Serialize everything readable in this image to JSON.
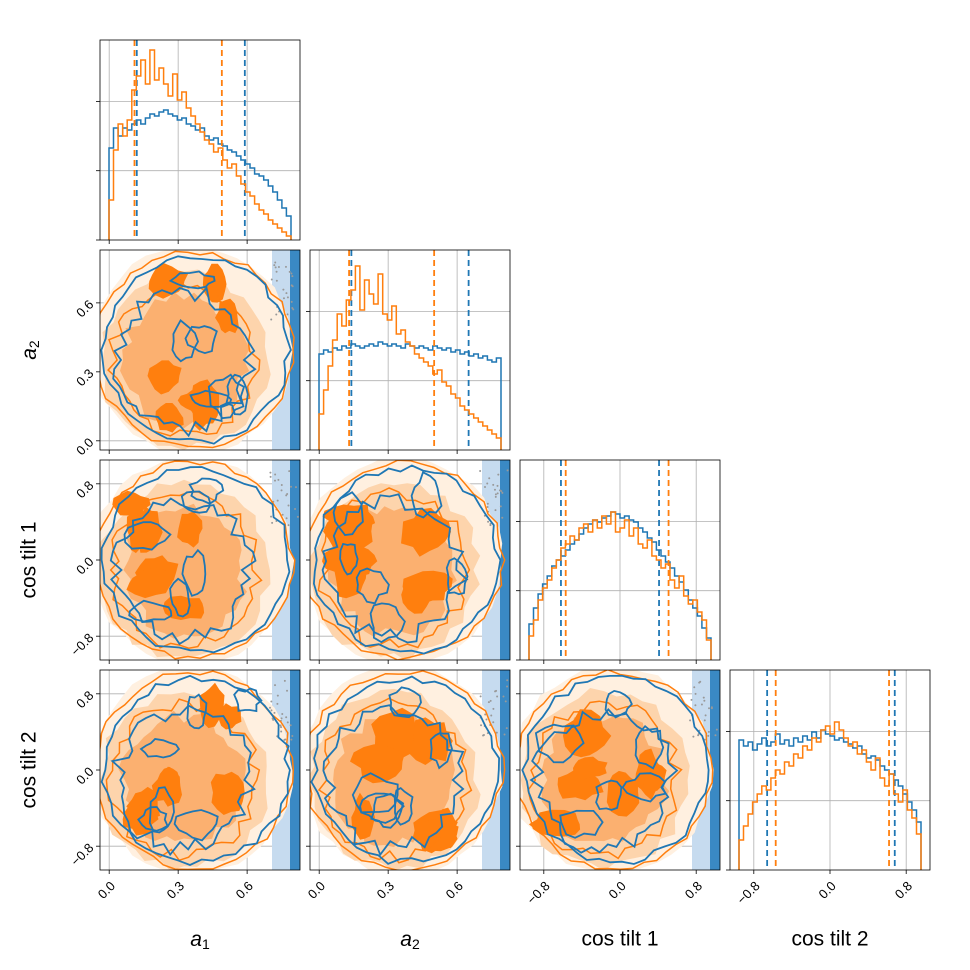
{
  "chart_data": {
    "type": "corner",
    "parameters": [
      {
        "key": "a1",
        "label_main": "a",
        "label_sub": "1",
        "range": [
          -0.04,
          0.83
        ],
        "ticks": [
          0.0,
          0.3,
          0.6
        ],
        "tick_labels": [
          "0.0",
          "0.3",
          "0.6"
        ]
      },
      {
        "key": "a2",
        "label_main": "a",
        "label_sub": "2",
        "range": [
          -0.04,
          0.83
        ],
        "ticks": [
          0.0,
          0.3,
          0.6
        ],
        "tick_labels": [
          "0.0",
          "0.3",
          "0.6"
        ]
      },
      {
        "key": "cos_tilt_1",
        "label_main": "cos tilt 1",
        "label_sub": "",
        "range": [
          -1.05,
          1.05
        ],
        "ticks": [
          -0.8,
          0.0,
          0.8
        ],
        "tick_labels": [
          "-0.8",
          "0.0",
          "0.8"
        ]
      },
      {
        "key": "cos_tilt_2",
        "label_main": "cos tilt 2",
        "label_sub": "",
        "range": [
          -1.05,
          1.05
        ],
        "ticks": [
          -0.8,
          0.0,
          0.8
        ],
        "tick_labels": [
          "-0.8",
          "0.0",
          "0.8"
        ]
      }
    ],
    "colors": {
      "series_a": "#1f77b4",
      "series_b": "#ff7f0e"
    },
    "grid": true,
    "series": [
      {
        "color_key": "series_a",
        "quantile_lines": [
          [
            0.12,
            0.59
          ],
          [
            0.14,
            0.65
          ],
          [
            -0.62,
            0.41
          ],
          [
            -0.66,
            0.68
          ]
        ],
        "histograms": [
          [
            0.46,
            0.56,
            0.52,
            0.56,
            0.55,
            0.58,
            0.6,
            0.58,
            0.61,
            0.63,
            0.62,
            0.64,
            0.65,
            0.63,
            0.62,
            0.6,
            0.61,
            0.58,
            0.57,
            0.55,
            0.56,
            0.52,
            0.5,
            0.51,
            0.48,
            0.47,
            0.45,
            0.44,
            0.42,
            0.4,
            0.38,
            0.36,
            0.33,
            0.32,
            0.3,
            0.27,
            0.24,
            0.2,
            0.16,
            0.12
          ],
          [
            0.48,
            0.5,
            0.49,
            0.51,
            0.5,
            0.52,
            0.51,
            0.53,
            0.52,
            0.51,
            0.52,
            0.53,
            0.52,
            0.54,
            0.53,
            0.52,
            0.53,
            0.52,
            0.51,
            0.53,
            0.52,
            0.51,
            0.52,
            0.51,
            0.5,
            0.52,
            0.51,
            0.5,
            0.51,
            0.49,
            0.5,
            0.48,
            0.49,
            0.47,
            0.48,
            0.46,
            0.47,
            0.45,
            0.44,
            0.46
          ],
          [
            0.18,
            0.26,
            0.33,
            0.38,
            0.42,
            0.47,
            0.5,
            0.52,
            0.55,
            0.58,
            0.6,
            0.63,
            0.66,
            0.68,
            0.7,
            0.69,
            0.71,
            0.72,
            0.74,
            0.73,
            0.71,
            0.72,
            0.7,
            0.69,
            0.66,
            0.64,
            0.61,
            0.59,
            0.55,
            0.52,
            0.49,
            0.46,
            0.42,
            0.39,
            0.35,
            0.3,
            0.26,
            0.22,
            0.16,
            0.11
          ],
          [
            0.65,
            0.62,
            0.64,
            0.6,
            0.63,
            0.66,
            0.62,
            0.64,
            0.68,
            0.63,
            0.65,
            0.62,
            0.66,
            0.64,
            0.67,
            0.65,
            0.69,
            0.66,
            0.7,
            0.68,
            0.67,
            0.65,
            0.66,
            0.64,
            0.63,
            0.61,
            0.62,
            0.58,
            0.56,
            0.57,
            0.55,
            0.52,
            0.5,
            0.48,
            0.45,
            0.42,
            0.38,
            0.34,
            0.3,
            0.24
          ]
        ]
      },
      {
        "color_key": "series_b",
        "quantile_lines": [
          [
            0.11,
            0.49
          ],
          [
            0.13,
            0.5
          ],
          [
            -0.57,
            0.51
          ],
          [
            -0.57,
            0.62
          ]
        ],
        "histograms": [
          [
            0.2,
            0.45,
            0.58,
            0.52,
            0.6,
            0.75,
            0.82,
            0.9,
            0.78,
            0.95,
            0.8,
            0.86,
            0.78,
            0.72,
            0.83,
            0.7,
            0.74,
            0.66,
            0.62,
            0.58,
            0.54,
            0.5,
            0.48,
            0.44,
            0.46,
            0.4,
            0.36,
            0.38,
            0.32,
            0.28,
            0.24,
            0.22,
            0.18,
            0.15,
            0.13,
            0.1,
            0.08,
            0.06,
            0.04,
            0.02
          ],
          [
            0.18,
            0.3,
            0.42,
            0.55,
            0.68,
            0.62,
            0.75,
            0.8,
            0.92,
            0.7,
            0.85,
            0.78,
            0.73,
            0.88,
            0.68,
            0.65,
            0.72,
            0.58,
            0.6,
            0.54,
            0.52,
            0.48,
            0.46,
            0.44,
            0.42,
            0.38,
            0.4,
            0.34,
            0.32,
            0.28,
            0.26,
            0.22,
            0.2,
            0.18,
            0.16,
            0.14,
            0.12,
            0.1,
            0.08,
            0.06
          ],
          [
            0.12,
            0.2,
            0.3,
            0.36,
            0.4,
            0.46,
            0.5,
            0.56,
            0.58,
            0.62,
            0.6,
            0.66,
            0.68,
            0.64,
            0.7,
            0.66,
            0.72,
            0.68,
            0.74,
            0.64,
            0.66,
            0.7,
            0.62,
            0.66,
            0.58,
            0.56,
            0.6,
            0.52,
            0.5,
            0.46,
            0.48,
            0.4,
            0.36,
            0.42,
            0.32,
            0.28,
            0.3,
            0.24,
            0.2,
            0.1
          ],
          [
            0.15,
            0.22,
            0.28,
            0.34,
            0.38,
            0.42,
            0.4,
            0.46,
            0.5,
            0.48,
            0.54,
            0.52,
            0.58,
            0.56,
            0.62,
            0.6,
            0.66,
            0.64,
            0.7,
            0.72,
            0.68,
            0.74,
            0.7,
            0.66,
            0.62,
            0.64,
            0.58,
            0.6,
            0.54,
            0.5,
            0.56,
            0.46,
            0.42,
            0.48,
            0.38,
            0.34,
            0.4,
            0.3,
            0.26,
            0.18
          ]
        ]
      }
    ]
  }
}
